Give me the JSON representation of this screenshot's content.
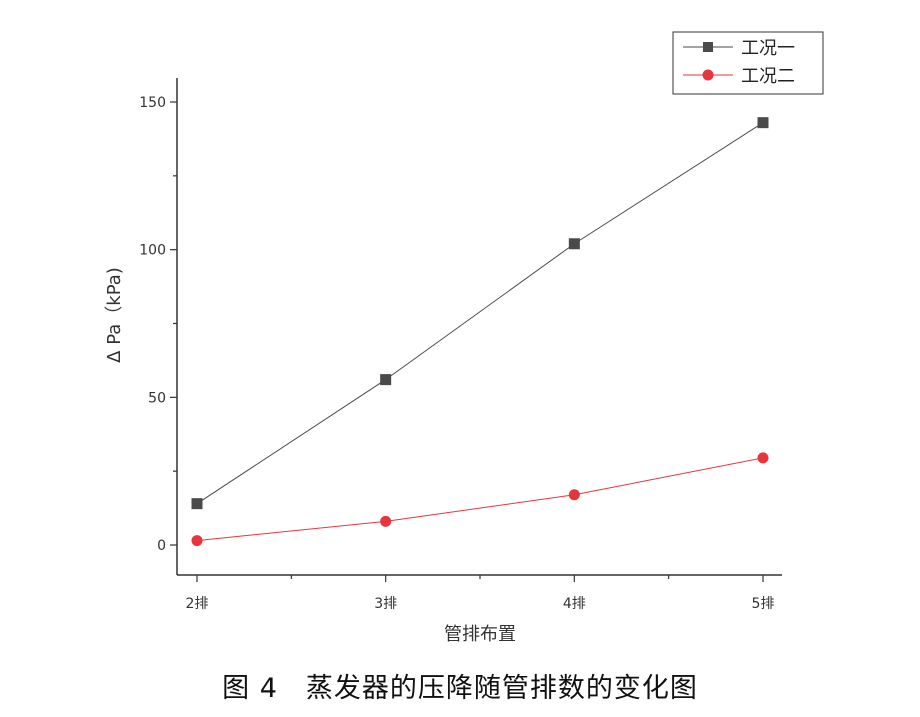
{
  "chart_data": {
    "type": "line",
    "categories": [
      "2排",
      "3排",
      "4排",
      "5排"
    ],
    "series": [
      {
        "name": "工况一",
        "values": [
          14,
          56,
          102,
          143
        ],
        "color": "#4a4a4a",
        "marker": "square"
      },
      {
        "name": "工况二",
        "values": [
          1.5,
          8,
          17,
          29.5
        ],
        "color": "#e8353c",
        "marker": "circle"
      }
    ],
    "xlabel": "管排布置",
    "ylabel": "Δ Pa（kPa)",
    "ylim": [
      -10,
      155
    ],
    "yticks": [
      0,
      50,
      100,
      150
    ],
    "ytick_labels": [
      "0",
      "50",
      "100",
      "150"
    ],
    "legend_position": "top-right",
    "grid": false
  },
  "caption": "图 4　蒸发器的压降随管排数的变化图"
}
